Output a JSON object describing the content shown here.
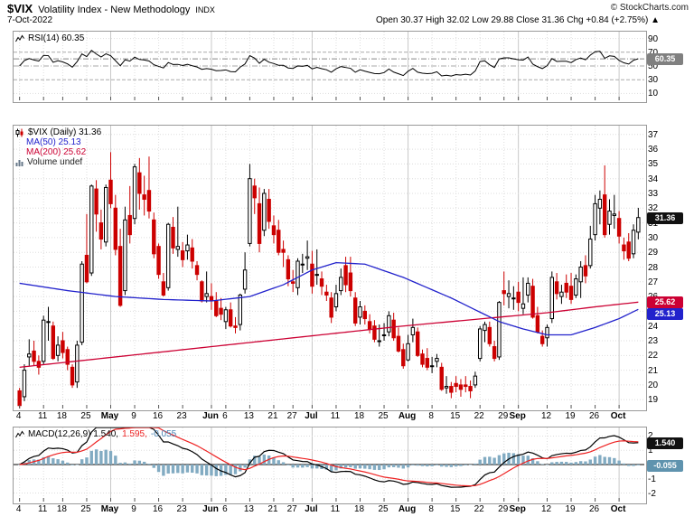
{
  "header": {
    "symbol": "$VIX",
    "name": "Volatility Index - New Methodology",
    "exchange": "INDX",
    "copyright": "© StockCharts.com",
    "date": "7-Oct-2022",
    "quote": "Open 30.37 High 32.02 Low 29.88 Close 31.36 Chg +0.84 (+2.75%) ▲"
  },
  "colors": {
    "up_candle": "#000000",
    "down_candle": "#cc0000",
    "ma50": "#2222cc",
    "ma200": "#cc0033",
    "rsi": "#000000",
    "macd": "#000000",
    "macd_signal": "#ee2222",
    "macd_histogram": "#82abc2",
    "grid": "#dddddd",
    "month_grid": "#c8c8c8"
  },
  "rsi_panel": {
    "label": "RSI(14) 60.35",
    "value_box": "60.35",
    "ticks": [
      90,
      70,
      50,
      30,
      10
    ],
    "range": [
      0,
      100
    ]
  },
  "price_panel": {
    "title_label": "$VIX (Daily) 31.36",
    "ma50_label": "MA(50) 25.13",
    "ma200_label": "MA(200) 25.62",
    "volume_label": "Volume undef",
    "close_box": "31.36",
    "ma50_box": "25.13",
    "ma200_box": "25.62",
    "y_tick_min": 19,
    "y_tick_max": 37,
    "range": [
      18.4,
      37.6
    ]
  },
  "macd_panel": {
    "label": "MACD(12,26,9) 1.540,",
    "signal_label": "1.595,",
    "hist_label": "-0.055",
    "macd_box": "1.540",
    "hist_box": "-0.055",
    "ticks": [
      2,
      1,
      -1,
      -2
    ],
    "range": [
      -2.6,
      2.6
    ]
  },
  "x_axis": {
    "ticks": [
      {
        "i": 0,
        "label": "4"
      },
      {
        "i": 5,
        "label": "11"
      },
      {
        "i": 9,
        "label": "18"
      },
      {
        "i": 14,
        "label": "25"
      },
      {
        "i": 19,
        "label": "May",
        "month": true
      },
      {
        "i": 24,
        "label": "9"
      },
      {
        "i": 29,
        "label": "16"
      },
      {
        "i": 34,
        "label": "23"
      },
      {
        "i": 40,
        "label": "Jun",
        "month": true
      },
      {
        "i": 43,
        "label": "6"
      },
      {
        "i": 48,
        "label": "13"
      },
      {
        "i": 53,
        "label": "21"
      },
      {
        "i": 57,
        "label": "27"
      },
      {
        "i": 61,
        "label": "Jul",
        "month": true
      },
      {
        "i": 66,
        "label": "11"
      },
      {
        "i": 71,
        "label": "18"
      },
      {
        "i": 76,
        "label": "25"
      },
      {
        "i": 81,
        "label": "Aug",
        "month": true
      },
      {
        "i": 86,
        "label": "8"
      },
      {
        "i": 91,
        "label": "15"
      },
      {
        "i": 96,
        "label": "22"
      },
      {
        "i": 101,
        "label": "29"
      },
      {
        "i": 104,
        "label": "Sep",
        "month": true
      },
      {
        "i": 110,
        "label": "12"
      },
      {
        "i": 115,
        "label": "19"
      },
      {
        "i": 120,
        "label": "26"
      },
      {
        "i": 125,
        "label": "Oct",
        "month": true
      }
    ]
  },
  "chart_data": {
    "type": "candlestick",
    "symbol": "$VIX",
    "timeframe": "Daily",
    "dates": [
      "4/4",
      "4/5",
      "4/6",
      "4/7",
      "4/8",
      "4/11",
      "4/12",
      "4/13",
      "4/14",
      "4/18",
      "4/19",
      "4/20",
      "4/21",
      "4/22",
      "4/25",
      "4/26",
      "4/27",
      "4/28",
      "4/29",
      "5/2",
      "5/3",
      "5/4",
      "5/5",
      "5/6",
      "5/9",
      "5/10",
      "5/11",
      "5/12",
      "5/13",
      "5/16",
      "5/17",
      "5/18",
      "5/19",
      "5/20",
      "5/23",
      "5/24",
      "5/25",
      "5/26",
      "5/27",
      "5/31",
      "6/1",
      "6/2",
      "6/3",
      "6/6",
      "6/7",
      "6/8",
      "6/9",
      "6/10",
      "6/13",
      "6/14",
      "6/15",
      "6/16",
      "6/17",
      "6/21",
      "6/22",
      "6/23",
      "6/24",
      "6/27",
      "6/28",
      "6/29",
      "6/30",
      "7/1",
      "7/5",
      "7/6",
      "7/7",
      "7/8",
      "7/11",
      "7/12",
      "7/13",
      "7/14",
      "7/15",
      "7/18",
      "7/19",
      "7/20",
      "7/21",
      "7/22",
      "7/25",
      "7/26",
      "7/27",
      "7/28",
      "7/29",
      "8/1",
      "8/2",
      "8/3",
      "8/4",
      "8/5",
      "8/8",
      "8/9",
      "8/10",
      "8/11",
      "8/12",
      "8/15",
      "8/16",
      "8/17",
      "8/18",
      "8/19",
      "8/22",
      "8/23",
      "8/24",
      "8/25",
      "8/26",
      "8/29",
      "8/30",
      "8/31",
      "9/1",
      "9/2",
      "9/6",
      "9/7",
      "9/8",
      "9/9",
      "9/12",
      "9/13",
      "9/14",
      "9/15",
      "9/16",
      "9/19",
      "9/20",
      "9/21",
      "9/22",
      "9/23",
      "9/26",
      "9/27",
      "9/28",
      "9/29",
      "9/30",
      "10/3",
      "10/4",
      "10/5",
      "10/6",
      "10/7"
    ],
    "ohlc": [
      [
        19.6,
        19.8,
        18.2,
        18.6
      ],
      [
        19.2,
        21.4,
        18.9,
        21.0
      ],
      [
        21.9,
        23.1,
        21.3,
        22.1
      ],
      [
        22.3,
        23.0,
        21.3,
        21.6
      ],
      [
        21.6,
        22.0,
        20.7,
        21.2
      ],
      [
        21.6,
        24.7,
        21.4,
        24.4
      ],
      [
        24.3,
        25.3,
        23.0,
        24.3
      ],
      [
        24.0,
        24.3,
        21.7,
        21.8
      ],
      [
        22.0,
        23.3,
        21.6,
        22.7
      ],
      [
        23.0,
        23.6,
        21.8,
        22.2
      ],
      [
        22.4,
        22.6,
        21.0,
        21.4
      ],
      [
        21.2,
        21.4,
        19.8,
        20.0
      ],
      [
        20.2,
        23.0,
        19.8,
        22.7
      ],
      [
        22.9,
        28.4,
        22.7,
        28.2
      ],
      [
        28.8,
        31.6,
        26.9,
        27.0
      ],
      [
        27.6,
        33.6,
        27.4,
        33.5
      ],
      [
        33.3,
        33.9,
        30.4,
        31.6
      ],
      [
        31.0,
        31.9,
        29.2,
        29.9
      ],
      [
        29.7,
        33.6,
        29.4,
        33.4
      ],
      [
        33.9,
        35.8,
        32.0,
        32.3
      ],
      [
        32.0,
        32.9,
        28.8,
        29.2
      ],
      [
        29.4,
        30.6,
        25.3,
        25.4
      ],
      [
        26.4,
        32.1,
        26.1,
        31.2
      ],
      [
        31.5,
        33.5,
        29.6,
        30.2
      ],
      [
        31.3,
        35.0,
        30.9,
        34.8
      ],
      [
        34.4,
        35.4,
        31.9,
        33.0
      ],
      [
        32.9,
        34.2,
        31.5,
        32.6
      ],
      [
        33.2,
        35.5,
        31.3,
        31.8
      ],
      [
        31.2,
        31.7,
        28.6,
        28.9
      ],
      [
        29.4,
        29.6,
        27.2,
        27.5
      ],
      [
        27.0,
        27.6,
        26.0,
        26.1
      ],
      [
        26.6,
        31.0,
        26.4,
        30.9
      ],
      [
        30.7,
        31.4,
        28.9,
        29.3
      ],
      [
        29.2,
        32.1,
        28.7,
        29.4
      ],
      [
        29.1,
        29.7,
        28.0,
        28.5
      ],
      [
        29.1,
        30.2,
        28.5,
        29.5
      ],
      [
        29.3,
        29.9,
        27.9,
        28.4
      ],
      [
        28.1,
        28.4,
        27.1,
        27.5
      ],
      [
        27.0,
        27.1,
        25.6,
        25.7
      ],
      [
        26.0,
        27.7,
        25.6,
        26.2
      ],
      [
        26.0,
        26.9,
        25.1,
        25.7
      ],
      [
        25.7,
        26.3,
        24.6,
        24.7
      ],
      [
        25.2,
        25.9,
        24.4,
        24.8
      ],
      [
        24.3,
        25.3,
        23.8,
        25.1
      ],
      [
        25.1,
        25.6,
        23.9,
        24.0
      ],
      [
        24.0,
        24.6,
        23.5,
        23.9
      ],
      [
        24.1,
        26.2,
        23.7,
        26.1
      ],
      [
        26.5,
        29.0,
        26.2,
        27.8
      ],
      [
        29.6,
        35.0,
        29.4,
        34.0
      ],
      [
        33.5,
        34.0,
        31.6,
        32.7
      ],
      [
        32.3,
        33.4,
        29.0,
        29.6
      ],
      [
        30.5,
        33.3,
        30.1,
        33.0
      ],
      [
        32.6,
        33.3,
        30.6,
        31.1
      ],
      [
        30.8,
        31.5,
        29.6,
        30.2
      ],
      [
        30.5,
        31.2,
        28.8,
        29.0
      ],
      [
        29.2,
        29.8,
        28.0,
        29.0
      ],
      [
        28.5,
        28.8,
        26.7,
        27.2
      ],
      [
        27.0,
        27.8,
        26.3,
        26.9
      ],
      [
        26.6,
        28.6,
        26.1,
        28.4
      ],
      [
        28.2,
        28.9,
        27.6,
        28.2
      ],
      [
        28.6,
        29.8,
        27.8,
        28.7
      ],
      [
        28.2,
        29.1,
        26.2,
        26.7
      ],
      [
        27.5,
        29.2,
        26.8,
        27.5
      ],
      [
        27.2,
        27.7,
        26.1,
        26.7
      ],
      [
        26.3,
        26.8,
        25.7,
        26.1
      ],
      [
        25.9,
        26.3,
        24.2,
        24.6
      ],
      [
        25.3,
        26.8,
        25.0,
        26.2
      ],
      [
        26.4,
        27.9,
        26.1,
        27.3
      ],
      [
        28.1,
        28.7,
        26.3,
        26.8
      ],
      [
        27.6,
        28.7,
        26.0,
        26.4
      ],
      [
        25.9,
        26.3,
        24.0,
        24.2
      ],
      [
        24.6,
        25.7,
        24.1,
        25.3
      ],
      [
        25.0,
        25.4,
        24.1,
        24.5
      ],
      [
        24.3,
        24.8,
        23.5,
        23.8
      ],
      [
        24.0,
        24.4,
        22.9,
        23.1
      ],
      [
        23.0,
        24.1,
        22.6,
        23.0
      ],
      [
        23.4,
        24.2,
        23.0,
        23.4
      ],
      [
        23.6,
        25.0,
        23.3,
        24.7
      ],
      [
        24.4,
        24.9,
        23.0,
        23.2
      ],
      [
        23.3,
        23.9,
        22.2,
        22.3
      ],
      [
        22.4,
        22.8,
        21.1,
        21.3
      ],
      [
        21.7,
        23.4,
        21.6,
        22.8
      ],
      [
        23.4,
        24.5,
        22.9,
        23.9
      ],
      [
        23.6,
        23.9,
        21.9,
        22.0
      ],
      [
        22.1,
        22.4,
        21.2,
        21.4
      ],
      [
        21.8,
        22.5,
        21.0,
        21.2
      ],
      [
        21.3,
        21.9,
        20.8,
        21.3
      ],
      [
        21.6,
        22.1,
        21.2,
        21.8
      ],
      [
        21.2,
        21.5,
        19.6,
        19.7
      ],
      [
        19.8,
        20.6,
        19.4,
        19.9
      ],
      [
        19.9,
        20.2,
        19.1,
        19.5
      ],
      [
        20.1,
        20.6,
        19.5,
        19.9
      ],
      [
        20.0,
        20.4,
        19.2,
        19.7
      ],
      [
        20.0,
        20.6,
        19.5,
        19.9
      ],
      [
        19.9,
        20.3,
        19.1,
        19.6
      ],
      [
        20.0,
        20.9,
        19.8,
        20.6
      ],
      [
        21.8,
        24.0,
        21.6,
        23.8
      ],
      [
        23.7,
        24.3,
        22.9,
        24.1
      ],
      [
        23.9,
        24.3,
        22.6,
        22.8
      ],
      [
        22.6,
        23.0,
        21.6,
        21.8
      ],
      [
        21.9,
        25.7,
        21.7,
        25.6
      ],
      [
        26.4,
        27.7,
        25.4,
        26.2
      ],
      [
        26.0,
        27.1,
        25.2,
        26.2
      ],
      [
        25.9,
        26.7,
        25.1,
        25.9
      ],
      [
        26.3,
        27.0,
        25.0,
        25.6
      ],
      [
        25.2,
        27.3,
        24.8,
        25.5
      ],
      [
        26.1,
        27.3,
        25.6,
        26.9
      ],
      [
        26.7,
        27.2,
        24.5,
        24.6
      ],
      [
        24.7,
        25.3,
        23.5,
        23.6
      ],
      [
        23.3,
        23.7,
        22.6,
        22.8
      ],
      [
        23.2,
        24.1,
        22.6,
        23.9
      ],
      [
        24.5,
        27.7,
        24.2,
        27.3
      ],
      [
        27.0,
        27.6,
        25.8,
        26.2
      ],
      [
        26.0,
        26.8,
        25.5,
        26.3
      ],
      [
        26.9,
        27.5,
        25.9,
        26.3
      ],
      [
        26.7,
        27.6,
        25.5,
        25.8
      ],
      [
        26.1,
        27.5,
        25.9,
        27.2
      ],
      [
        27.0,
        28.4,
        25.9,
        28.0
      ],
      [
        28.1,
        28.8,
        26.9,
        27.4
      ],
      [
        28.1,
        30.8,
        27.9,
        29.9
      ],
      [
        30.2,
        32.9,
        29.8,
        32.3
      ],
      [
        32.0,
        33.2,
        30.9,
        32.6
      ],
      [
        32.9,
        34.9,
        30.0,
        30.2
      ],
      [
        30.9,
        32.6,
        30.2,
        31.8
      ],
      [
        31.5,
        32.9,
        30.6,
        31.6
      ],
      [
        31.3,
        31.8,
        29.6,
        30.1
      ],
      [
        29.5,
        30.0,
        28.5,
        29.1
      ],
      [
        29.7,
        30.3,
        28.4,
        28.6
      ],
      [
        28.9,
        30.9,
        28.6,
        30.5
      ],
      [
        30.37,
        32.02,
        29.88,
        31.36
      ]
    ],
    "overlays": {
      "ma50_points": [
        [
          0,
          26.9
        ],
        [
          10,
          26.4
        ],
        [
          20,
          26.0
        ],
        [
          30,
          25.8
        ],
        [
          40,
          25.7
        ],
        [
          48,
          26.0
        ],
        [
          55,
          26.8
        ],
        [
          61,
          27.8
        ],
        [
          66,
          28.3
        ],
        [
          72,
          28.2
        ],
        [
          80,
          27.3
        ],
        [
          90,
          25.9
        ],
        [
          100,
          24.3
        ],
        [
          105,
          23.8
        ],
        [
          110,
          23.4
        ],
        [
          115,
          23.4
        ],
        [
          120,
          23.9
        ],
        [
          125,
          24.5
        ],
        [
          129,
          25.13
        ]
      ],
      "ma200_points": [
        [
          0,
          21.2
        ],
        [
          20,
          21.9
        ],
        [
          40,
          22.6
        ],
        [
          60,
          23.3
        ],
        [
          80,
          24.0
        ],
        [
          100,
          24.6
        ],
        [
          110,
          24.9
        ],
        [
          120,
          25.3
        ],
        [
          129,
          25.62
        ]
      ]
    },
    "indicators": {
      "rsi_period": 14,
      "rsi_last": 60.35,
      "macd_params": [
        12,
        26,
        9
      ],
      "macd_last": 1.54,
      "signal_last": 1.595,
      "hist_last": -0.055
    },
    "last": {
      "open": 30.37,
      "high": 32.02,
      "low": 29.88,
      "close": 31.36,
      "change": "+0.84",
      "change_pct": "+2.75%",
      "ma50": 25.13,
      "ma200": 25.62
    }
  }
}
